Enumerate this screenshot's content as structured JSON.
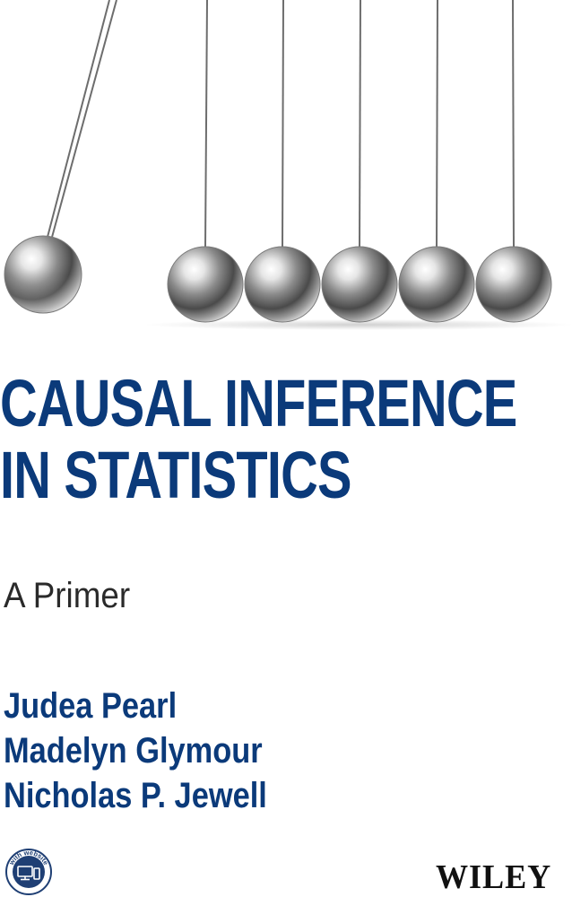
{
  "book": {
    "title_line_1": "CAUSAL INFERENCE",
    "title_line_2": "IN STATISTICS",
    "subtitle": "A Primer",
    "authors": [
      "Judea Pearl",
      "Madelyn Glymour",
      "Nicholas P. Jewell"
    ],
    "badge_text": "with website",
    "publisher": "WILEY"
  },
  "colors": {
    "title": "#0b3a7a",
    "authors": "#0b3a7a",
    "subtitle": "#2a2a2a",
    "publisher": "#111111",
    "badge": "#1f3f74"
  },
  "illustration": {
    "subject": "newtons-cradle",
    "ball_count": 6
  }
}
